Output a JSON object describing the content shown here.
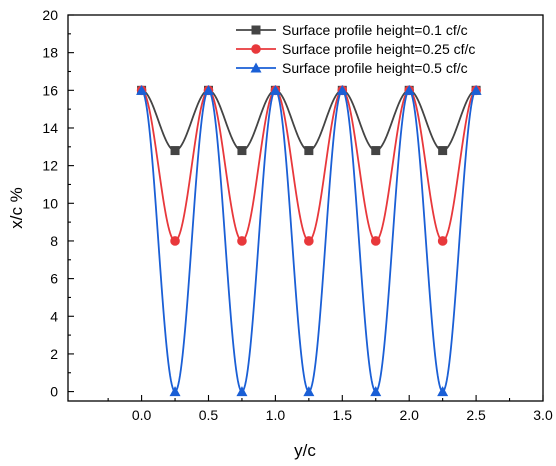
{
  "chart_data": {
    "type": "line",
    "xlabel": "y/c",
    "ylabel": "x/c  %",
    "xlim": [
      -0.55,
      3.0
    ],
    "ylim": [
      -0.5,
      20
    ],
    "xticks": [
      "0.0",
      "0.5",
      "1.0",
      "1.5",
      "2.0",
      "2.5",
      "3.0"
    ],
    "yticks": [
      "0",
      "2",
      "4",
      "6",
      "8",
      "10",
      "12",
      "14",
      "16",
      "18",
      "20"
    ],
    "grid": false,
    "legend_position": "top-right",
    "markers_x": [
      0,
      0.25,
      0.5,
      0.75,
      1.0,
      1.25,
      1.5,
      1.75,
      2.0,
      2.25,
      2.5
    ],
    "series": [
      {
        "name": "Surface profile height=0.1 cf/c",
        "color": "#444444",
        "marker": "square",
        "max": 16,
        "min": 12.8,
        "period": 0.5,
        "values": [
          16,
          12.8,
          16,
          12.8,
          16,
          12.8,
          16,
          12.8,
          16,
          12.8,
          16
        ]
      },
      {
        "name": "Surface profile height=0.25 cf/c",
        "color": "#e8383b",
        "marker": "circle",
        "max": 16,
        "min": 8,
        "period": 0.5,
        "values": [
          16,
          8,
          16,
          8,
          16,
          8,
          16,
          8,
          16,
          8,
          16
        ]
      },
      {
        "name": "Surface profile height=0.5 cf/c",
        "color": "#1a5fd6",
        "marker": "triangle",
        "max": 16,
        "min": 0,
        "period": 0.5,
        "values": [
          16,
          0,
          16,
          0,
          16,
          0,
          16,
          0,
          16,
          0,
          16
        ]
      }
    ]
  }
}
